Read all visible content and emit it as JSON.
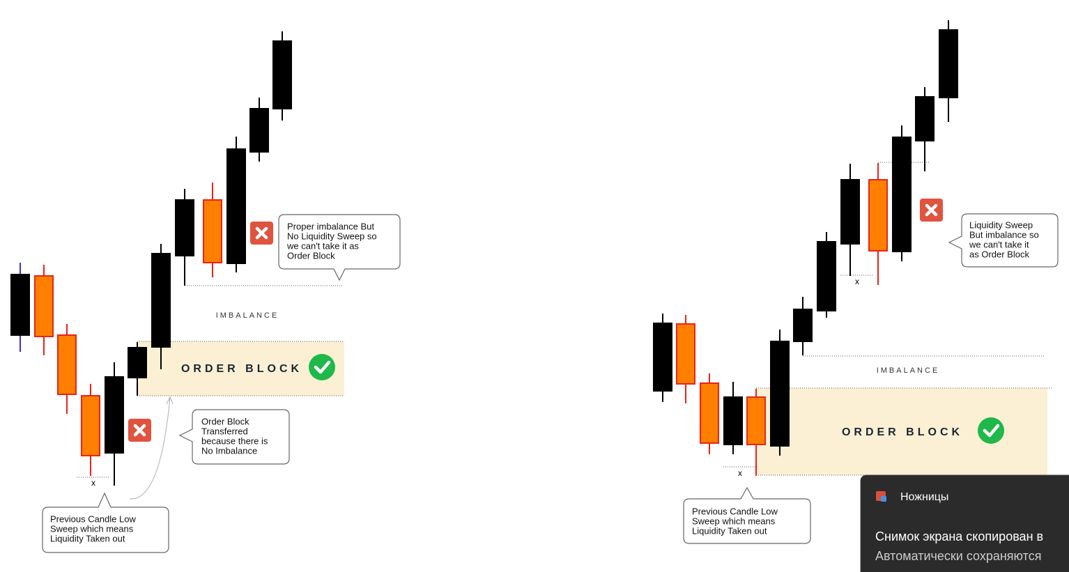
{
  "left": {
    "callout_top": {
      "lines": [
        "Proper imbalance But",
        "No Liquidity Sweep so",
        "we can't take it as",
        "Order Block"
      ]
    },
    "imbalance": "IMBALANCE",
    "order_block": "ORDER BLOCK",
    "callout_transfer": {
      "lines": [
        "Order Block",
        "Transferred",
        "because there is",
        "No Imbalance"
      ]
    },
    "x_marker": "x",
    "callout_sweep": {
      "lines": [
        "Previous Candle Low",
        "Sweep which means",
        "Liquidity Taken out"
      ]
    }
  },
  "right": {
    "callout_top": {
      "lines": [
        "Liquidity Sweep",
        "But imbalance so",
        "we can't take it",
        "as Order Block"
      ]
    },
    "x_marker_top": "x",
    "imbalance": "IMBALANCE",
    "order_block": "ORDER BLOCK",
    "x_marker": "x",
    "callout_sweep": {
      "lines": [
        "Previous Candle Low",
        "Sweep which means",
        "Liquidity Taken out"
      ]
    }
  },
  "notification": {
    "app": "Ножницы",
    "line1": "Снимок экрана скопирован в",
    "line2": "Автоматически сохраняются"
  }
}
